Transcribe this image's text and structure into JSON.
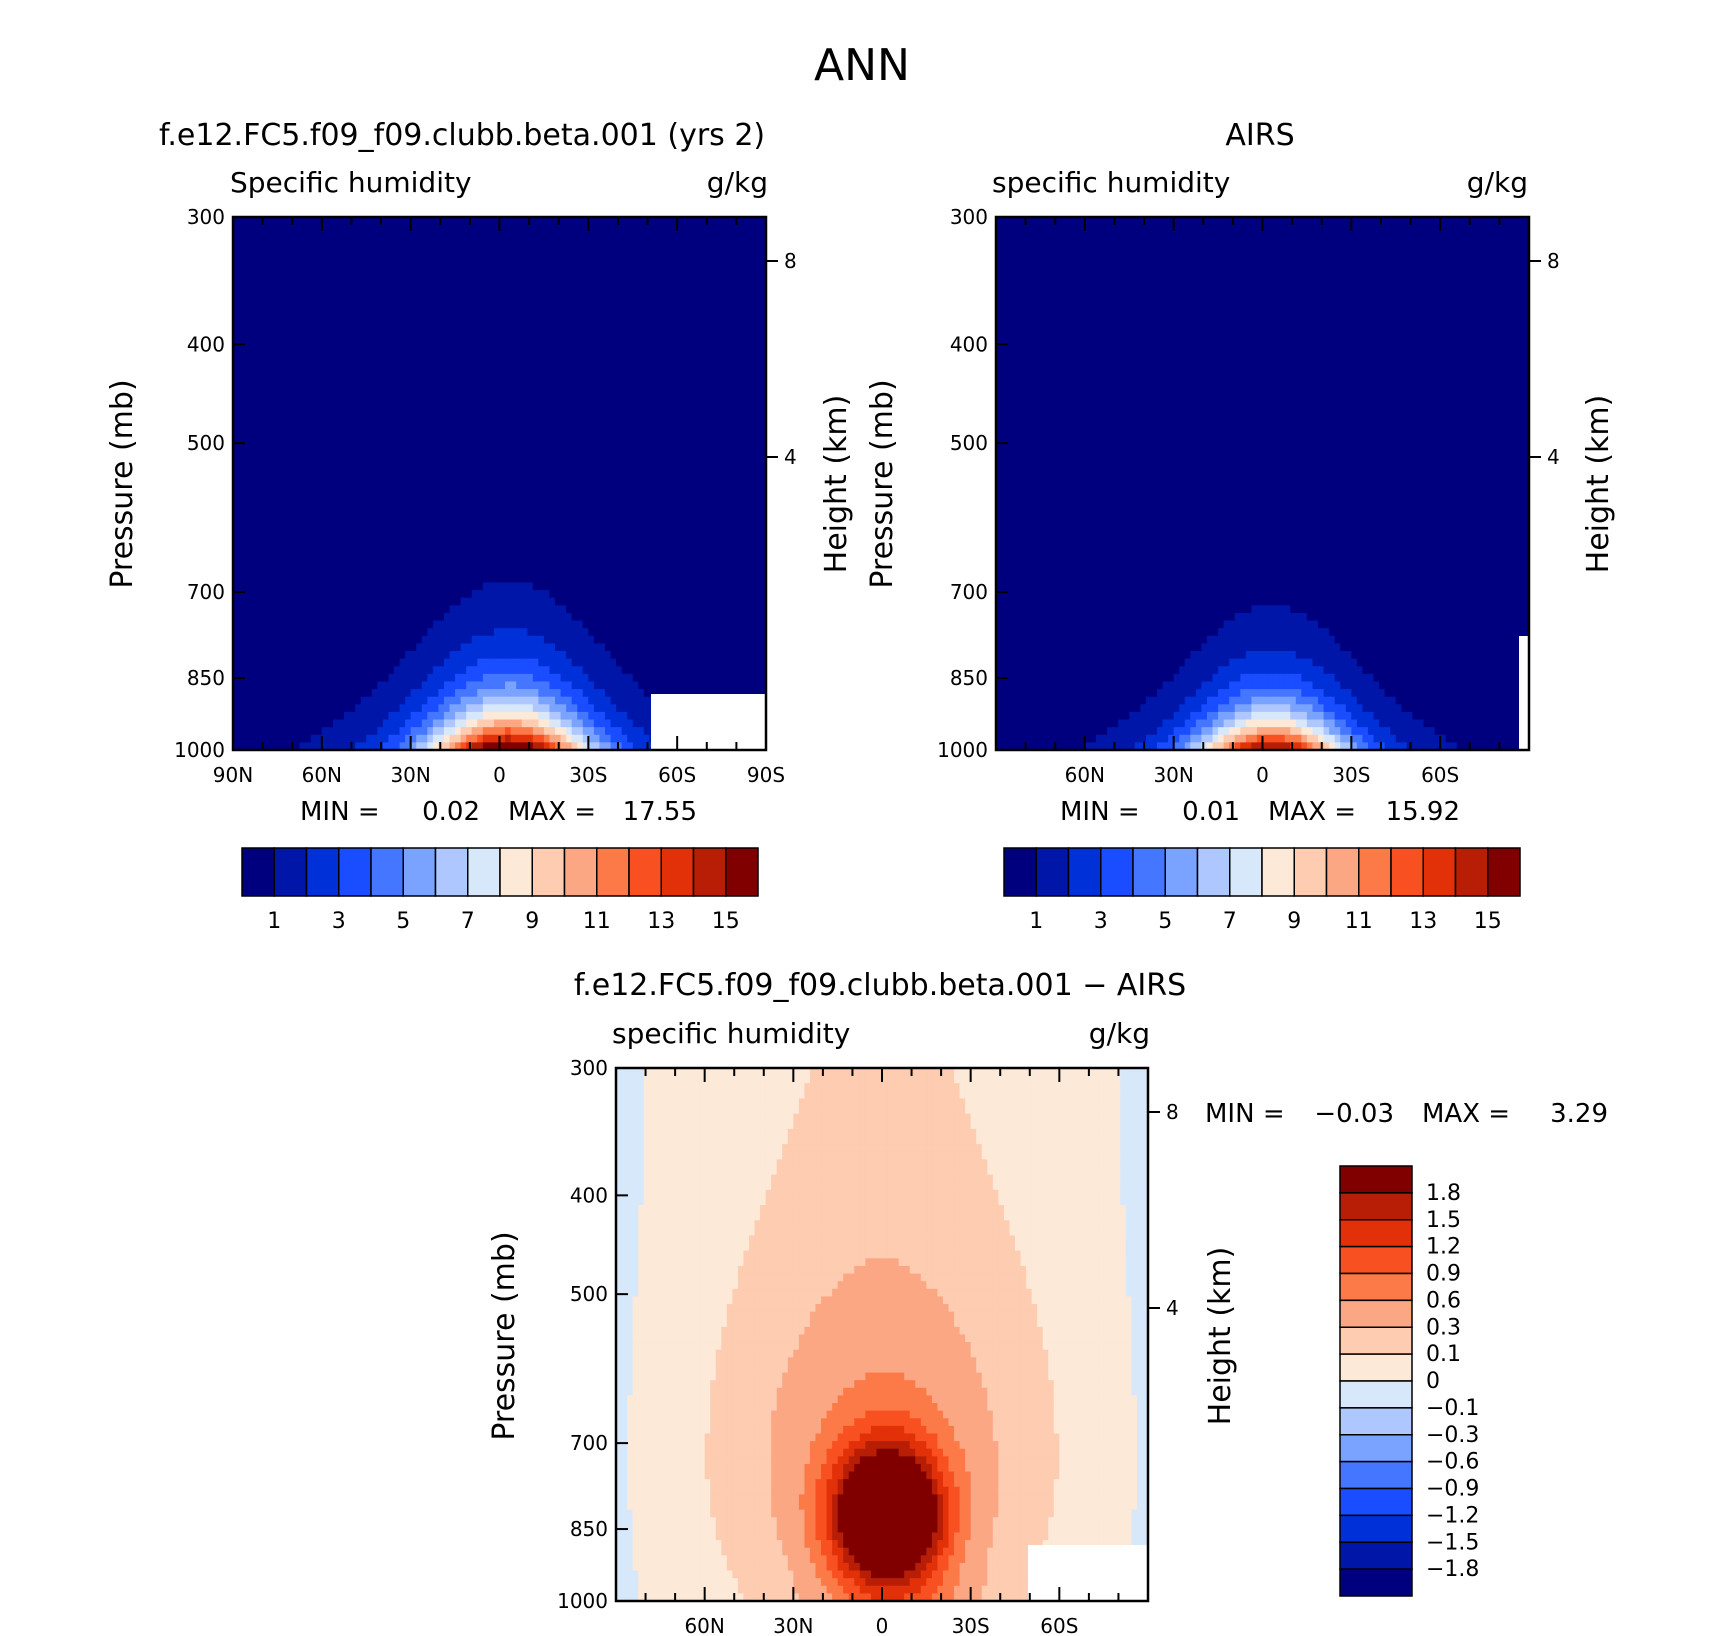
{
  "figure": {
    "title": "ANN"
  },
  "colors": {
    "abs_scale": [
      "#00007f",
      "#0016a8",
      "#0030d8",
      "#1a4dff",
      "#4576ff",
      "#7aa3ff",
      "#aec8ff",
      "#d7e8fb",
      "#fde9d7",
      "#fdccb1",
      "#fba784",
      "#fb7a48",
      "#f85020",
      "#e23109",
      "#b81e06",
      "#800000"
    ],
    "diff_scale": [
      "#800000",
      "#b81e06",
      "#e23109",
      "#f85020",
      "#fb7a48",
      "#fba784",
      "#fdccb1",
      "#fde9d7",
      "#d7e8fb",
      "#aec8ff",
      "#7aa3ff",
      "#4576ff",
      "#1a4dff",
      "#0030d8",
      "#0016a8",
      "#00007f"
    ]
  },
  "chart_data": [
    {
      "type": "heatmap",
      "title": "f.e12.FC5.f09_f09.clubb.beta.001 (yrs 2)",
      "subtitle_left": "Specific humidity",
      "subtitle_right": "g/kg",
      "ylabel": "Pressure (mb)",
      "ylabel_right": "Height (km)",
      "yticks": [
        "300",
        "400",
        "500",
        "700",
        "850",
        "1000"
      ],
      "yticks_right": [
        "8",
        "4"
      ],
      "xticks": [
        "90N",
        "60N",
        "30N",
        "0",
        "30S",
        "60S",
        "90S"
      ],
      "min_label": "MIN =",
      "min_value": "0.02",
      "max_label": "MAX =",
      "max_value": "17.55",
      "peak": 17.55,
      "center_lat": -3,
      "width": 26,
      "height_scale": 0.95,
      "colorbar_labels": [
        "1",
        "3",
        "5",
        "7",
        "9",
        "11",
        "13",
        "15"
      ]
    },
    {
      "type": "heatmap",
      "title": "AIRS",
      "subtitle_left": "specific humidity",
      "subtitle_right": "g/kg",
      "ylabel": "Pressure (mb)",
      "ylabel_right": "Height (km)",
      "yticks": [
        "300",
        "400",
        "500",
        "700",
        "850",
        "1000"
      ],
      "yticks_right": [
        "8",
        "4"
      ],
      "xticks": [
        "60N",
        "30N",
        "0",
        "30S",
        "60S"
      ],
      "min_label": "MIN =",
      "min_value": "0.01",
      "max_label": "MAX =",
      "max_value": "15.92",
      "peak": 15.92,
      "center_lat": -3,
      "width": 24,
      "height_scale": 0.85,
      "colorbar_labels": [
        "1",
        "3",
        "5",
        "7",
        "9",
        "11",
        "13",
        "15"
      ]
    },
    {
      "type": "heatmap",
      "title": "f.e12.FC5.f09_f09.clubb.beta.001 − AIRS",
      "subtitle_left": "specific humidity",
      "subtitle_right": "g/kg",
      "ylabel": "Pressure (mb)",
      "ylabel_right": "Height (km)",
      "yticks": [
        "300",
        "400",
        "500",
        "700",
        "850",
        "1000"
      ],
      "yticks_right": [
        "8",
        "4"
      ],
      "xticks": [
        "60N",
        "30N",
        "0",
        "30S",
        "60S"
      ],
      "min_label": "MIN =",
      "min_value": "−0.03",
      "max_label": "MAX =",
      "max_value": "3.29",
      "colorbar_labels": [
        "1.8",
        "1.5",
        "1.2",
        "0.9",
        "0.6",
        "0.3",
        "0.1",
        "0",
        "−0.1",
        "−0.3",
        "−0.6",
        "−0.9",
        "−1.2",
        "−1.5",
        "−1.8"
      ]
    }
  ]
}
